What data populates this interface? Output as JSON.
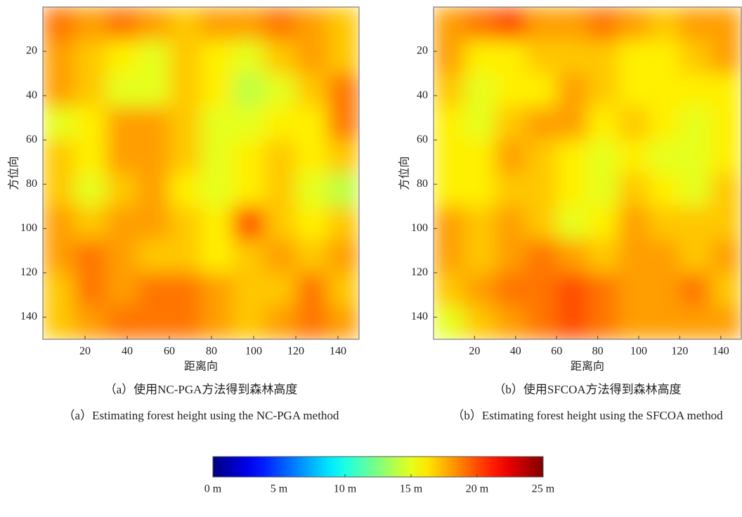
{
  "chart_data": [
    {
      "type": "heatmap",
      "caption_cn": "（a）使用NC-PGA方法得到森林高度",
      "caption_en": "（a）Estimating forest height using the NC-PGA method",
      "xlabel": "距离向",
      "ylabel": "方位向",
      "xlim": [
        0,
        150
      ],
      "ylim": [
        0,
        150
      ],
      "xticks": [
        20,
        40,
        60,
        80,
        100,
        120,
        140
      ],
      "yticks": [
        20,
        40,
        60,
        80,
        100,
        120,
        140
      ],
      "z": [
        [
          19,
          18,
          19,
          18,
          17,
          18,
          18,
          19,
          18,
          17
        ],
        [
          18,
          17,
          16,
          15,
          17,
          16,
          15,
          17,
          18,
          17
        ],
        [
          18,
          17,
          15,
          15,
          17,
          16,
          14,
          15,
          17,
          19
        ],
        [
          15,
          16,
          18,
          18,
          17,
          15,
          15,
          16,
          16,
          19
        ],
        [
          17,
          16,
          18,
          18,
          17,
          15,
          16,
          17,
          16,
          17
        ],
        [
          17,
          15,
          17,
          18,
          16,
          15,
          16,
          17,
          15,
          14
        ],
        [
          18,
          17,
          18,
          18,
          17,
          16,
          20,
          17,
          16,
          17
        ],
        [
          18,
          19,
          18,
          17,
          17,
          16,
          17,
          18,
          17,
          18
        ],
        [
          17,
          19,
          18,
          19,
          19,
          18,
          17,
          17,
          19,
          17
        ],
        [
          17,
          18,
          19,
          19,
          19,
          18,
          17,
          18,
          19,
          18
        ]
      ]
    },
    {
      "type": "heatmap",
      "caption_cn": "（b）使用SFCOA方法得到森林高度",
      "caption_en": "（b）Estimating forest height using the SFCOA method",
      "xlabel": "距离向",
      "ylabel": "方位向",
      "xlim": [
        0,
        150
      ],
      "ylim": [
        0,
        150
      ],
      "xticks": [
        20,
        40,
        60,
        80,
        100,
        120,
        140
      ],
      "yticks": [
        20,
        40,
        60,
        80,
        100,
        120,
        140
      ],
      "z": [
        [
          18,
          19,
          20,
          18,
          18,
          19,
          18,
          17,
          18,
          18
        ],
        [
          18,
          16,
          16,
          17,
          17,
          17,
          16,
          16,
          17,
          18
        ],
        [
          17,
          15,
          16,
          16,
          18,
          17,
          16,
          16,
          16,
          16
        ],
        [
          16,
          15,
          17,
          18,
          18,
          16,
          17,
          16,
          15,
          16
        ],
        [
          16,
          16,
          18,
          17,
          16,
          15,
          16,
          15,
          15,
          16
        ],
        [
          16,
          16,
          17,
          17,
          16,
          15,
          17,
          16,
          15,
          17
        ],
        [
          18,
          17,
          18,
          17,
          15,
          16,
          18,
          17,
          17,
          17
        ],
        [
          18,
          17,
          18,
          19,
          18,
          17,
          18,
          18,
          17,
          18
        ],
        [
          17,
          18,
          19,
          19,
          20,
          19,
          18,
          18,
          19,
          17
        ],
        [
          15,
          17,
          18,
          19,
          20,
          19,
          18,
          18,
          18,
          18
        ]
      ]
    },
    {
      "type": "colorbar",
      "colormap": "jet",
      "clim": [
        0,
        25
      ],
      "ticks": [
        {
          "value": 0,
          "label": "0 m"
        },
        {
          "value": 5,
          "label": "5 m"
        },
        {
          "value": 10,
          "label": "10 m"
        },
        {
          "value": 15,
          "label": "15 m"
        },
        {
          "value": 20,
          "label": "20 m"
        },
        {
          "value": 25,
          "label": "25 m"
        }
      ]
    }
  ]
}
